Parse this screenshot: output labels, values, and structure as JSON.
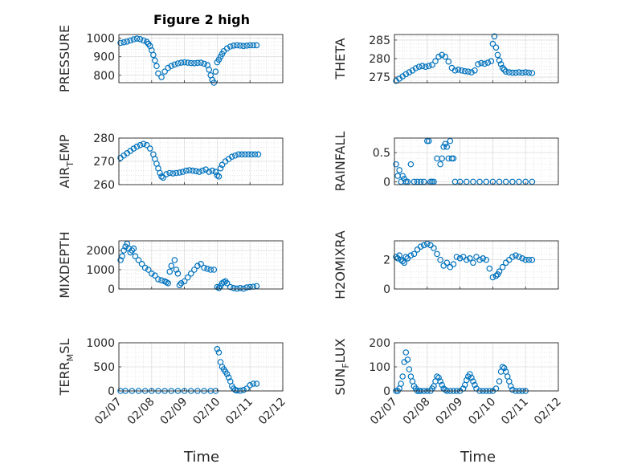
{
  "title": "Figure 2 high",
  "x_label": "Time",
  "date_ticks": [
    "02/07",
    "02/08",
    "02/09",
    "02/10",
    "02/11",
    "02/12"
  ],
  "marker_color": "#0072BD",
  "grid": true,
  "chart_data": [
    {
      "type": "scatter",
      "id": "pressure",
      "ylabel": "PRESSURE",
      "title": "Figure 2 high",
      "ylim": [
        760,
        1020
      ],
      "yticks": [
        800,
        900,
        1000
      ],
      "xlim": [
        "02/07",
        "02/12"
      ],
      "x": [
        7.05,
        7.15,
        7.25,
        7.35,
        7.45,
        7.55,
        7.65,
        7.75,
        7.85,
        7.9,
        7.95,
        8.0,
        8.05,
        8.1,
        8.15,
        8.2,
        8.3,
        8.4,
        8.5,
        8.6,
        8.7,
        8.8,
        8.9,
        9.0,
        9.1,
        9.2,
        9.3,
        9.4,
        9.5,
        9.6,
        9.7,
        9.75,
        9.8,
        9.85,
        9.9,
        9.95,
        10.0,
        10.05,
        10.1,
        10.15,
        10.2,
        10.3,
        10.4,
        10.5,
        10.6,
        10.7,
        10.8,
        10.9,
        11.0,
        11.1,
        11.2
      ],
      "y": [
        975,
        978,
        982,
        988,
        994,
        998,
        995,
        988,
        980,
        970,
        958,
        935,
        910,
        880,
        850,
        810,
        790,
        820,
        840,
        850,
        858,
        864,
        868,
        870,
        868,
        866,
        865,
        867,
        868,
        862,
        855,
        830,
        800,
        775,
        760,
        820,
        870,
        885,
        900,
        915,
        930,
        945,
        955,
        960,
        962,
        960,
        958,
        960,
        962,
        962,
        962
      ]
    },
    {
      "type": "scatter",
      "id": "theta",
      "ylabel": "THETA",
      "ylim": [
        273.5,
        286.5
      ],
      "yticks": [
        275,
        280,
        285
      ],
      "x": [
        7.05,
        7.15,
        7.25,
        7.35,
        7.45,
        7.55,
        7.65,
        7.75,
        7.85,
        7.95,
        8.05,
        8.15,
        8.25,
        8.35,
        8.45,
        8.55,
        8.65,
        8.75,
        8.85,
        8.95,
        9.05,
        9.15,
        9.25,
        9.35,
        9.45,
        9.55,
        9.65,
        9.75,
        9.85,
        9.95,
        10.0,
        10.05,
        10.1,
        10.15,
        10.2,
        10.25,
        10.3,
        10.35,
        10.4,
        10.5,
        10.6,
        10.7,
        10.8,
        10.9,
        11.0,
        11.1,
        11.2
      ],
      "y": [
        274,
        274.6,
        275.2,
        275.8,
        276.3,
        276.8,
        277.4,
        277.8,
        278,
        277.8,
        278,
        278.3,
        279.3,
        280.5,
        281,
        280.5,
        279.2,
        277.5,
        276.8,
        277,
        276.8,
        276.6,
        276.5,
        276.3,
        276.8,
        278.5,
        278.8,
        278.6,
        278.9,
        279.3,
        284,
        286,
        283,
        281,
        279.5,
        278.5,
        277.5,
        277,
        276.5,
        276.3,
        276.2,
        276.2,
        276.3,
        276.2,
        276.3,
        276.2,
        276.1
      ]
    },
    {
      "type": "scatter",
      "id": "air-temp",
      "ylabel": "AIR_TEMP",
      "ylim": [
        260,
        280
      ],
      "yticks": [
        260,
        270,
        280
      ],
      "x": [
        7.05,
        7.15,
        7.25,
        7.35,
        7.45,
        7.55,
        7.65,
        7.75,
        7.85,
        7.95,
        8.05,
        8.1,
        8.15,
        8.2,
        8.25,
        8.3,
        8.35,
        8.45,
        8.55,
        8.65,
        8.75,
        8.85,
        8.95,
        9.05,
        9.15,
        9.25,
        9.35,
        9.45,
        9.55,
        9.65,
        9.75,
        9.85,
        9.95,
        10.0,
        10.05,
        10.1,
        10.15,
        10.25,
        10.35,
        10.45,
        10.55,
        10.65,
        10.75,
        10.85,
        10.95,
        11.05,
        11.15,
        11.25
      ],
      "y": [
        271.5,
        272.5,
        273.5,
        274.5,
        275.5,
        276.3,
        277,
        277.5,
        277,
        275.5,
        273,
        271,
        269,
        267,
        265,
        263.5,
        263,
        264.5,
        265,
        264.8,
        265,
        265.2,
        265.5,
        266,
        266.2,
        266,
        265.8,
        265.5,
        266,
        266.5,
        265.5,
        266,
        265.5,
        264,
        263.5,
        267,
        268.5,
        270,
        271,
        272,
        272.5,
        273,
        273,
        273,
        273,
        273,
        273,
        273
      ]
    },
    {
      "type": "scatter",
      "id": "rainfall",
      "ylabel": "RAINFALL",
      "ylim": [
        -0.05,
        0.75
      ],
      "yticks": [
        0,
        0.5
      ],
      "x": [
        7.05,
        7.1,
        7.15,
        7.2,
        7.25,
        7.3,
        7.35,
        7.4,
        7.5,
        7.6,
        7.7,
        7.8,
        7.9,
        8.0,
        8.05,
        8.1,
        8.15,
        8.2,
        8.3,
        8.4,
        8.45,
        8.5,
        8.55,
        8.6,
        8.65,
        8.7,
        8.75,
        8.8,
        8.85,
        9.0,
        9.2,
        9.4,
        9.6,
        9.8,
        10.0,
        10.2,
        10.4,
        10.6,
        10.8,
        11.0,
        11.2
      ],
      "y": [
        0.3,
        0.1,
        0.2,
        0,
        0.1,
        0.05,
        0,
        0,
        0.3,
        0,
        0,
        0,
        0,
        0.7,
        0.7,
        0,
        0,
        0,
        0.4,
        0.3,
        0.4,
        0.6,
        0.65,
        0.6,
        0.4,
        0.7,
        0.4,
        0.4,
        0,
        0,
        0,
        0,
        0,
        0,
        0,
        0,
        0,
        0,
        0,
        0,
        0
      ]
    },
    {
      "type": "scatter",
      "id": "mixdepth",
      "ylabel": "MIXDEPTH",
      "ylim": [
        0,
        2500
      ],
      "yticks": [
        0,
        1000,
        2000
      ],
      "x": [
        7.05,
        7.1,
        7.15,
        7.2,
        7.25,
        7.3,
        7.35,
        7.4,
        7.45,
        7.5,
        7.6,
        7.7,
        7.8,
        7.9,
        8.0,
        8.1,
        8.2,
        8.3,
        8.4,
        8.45,
        8.5,
        8.55,
        8.6,
        8.7,
        8.75,
        8.8,
        8.85,
        8.9,
        9.0,
        9.1,
        9.2,
        9.3,
        9.4,
        9.5,
        9.6,
        9.7,
        9.8,
        9.9,
        10.0,
        10.05,
        10.1,
        10.15,
        10.2,
        10.25,
        10.3,
        10.4,
        10.5,
        10.6,
        10.7,
        10.8,
        10.9,
        11.0,
        11.1,
        11.2
      ],
      "y": [
        1500,
        1700,
        2000,
        2200,
        2350,
        2100,
        1900,
        2000,
        2100,
        1700,
        1500,
        1300,
        1100,
        1000,
        800,
        700,
        500,
        450,
        400,
        350,
        300,
        900,
        1200,
        1500,
        1000,
        800,
        200,
        300,
        400,
        600,
        800,
        1000,
        1200,
        1300,
        1100,
        1050,
        1000,
        1000,
        100,
        50,
        150,
        300,
        350,
        400,
        300,
        100,
        50,
        20,
        50,
        20,
        80,
        100,
        120,
        150
      ]
    },
    {
      "type": "scatter",
      "id": "h2omixra",
      "ylabel": "H2OMIXRA",
      "ylim": [
        0,
        3.3
      ],
      "yticks": [
        0,
        2
      ],
      "x": [
        7.05,
        7.1,
        7.15,
        7.2,
        7.25,
        7.3,
        7.35,
        7.4,
        7.5,
        7.6,
        7.7,
        7.8,
        7.9,
        8.0,
        8.1,
        8.2,
        8.3,
        8.4,
        8.5,
        8.6,
        8.7,
        8.8,
        8.9,
        9.0,
        9.1,
        9.2,
        9.3,
        9.4,
        9.5,
        9.6,
        9.7,
        9.8,
        9.9,
        10.0,
        10.1,
        10.15,
        10.2,
        10.3,
        10.4,
        10.5,
        10.6,
        10.7,
        10.8,
        10.9,
        11.0,
        11.1,
        11.2
      ],
      "y": [
        2.2,
        2.1,
        2.3,
        2,
        1.9,
        1.8,
        2.2,
        2.1,
        2.3,
        2.4,
        2.7,
        2.9,
        3.0,
        3.1,
        3.0,
        2.8,
        2.4,
        2.0,
        1.6,
        1.8,
        1.5,
        1.7,
        2.2,
        2.1,
        2.2,
        2.0,
        2.1,
        1.8,
        2.2,
        2.0,
        2.1,
        2.0,
        1.4,
        0.8,
        0.9,
        1.0,
        1.2,
        1.5,
        1.8,
        2.0,
        2.2,
        2.3,
        2.2,
        2.1,
        2.0,
        2.0,
        2.0
      ]
    },
    {
      "type": "scatter",
      "id": "terr-msl",
      "ylabel": "TERR_MSL",
      "ylim": [
        0,
        1000
      ],
      "yticks": [
        0,
        500,
        1000
      ],
      "x": [
        7.05,
        7.2,
        7.4,
        7.6,
        7.8,
        8.0,
        8.2,
        8.4,
        8.6,
        8.8,
        9.0,
        9.2,
        9.4,
        9.6,
        9.8,
        9.95,
        10.0,
        10.05,
        10.1,
        10.15,
        10.2,
        10.25,
        10.3,
        10.35,
        10.4,
        10.45,
        10.5,
        10.55,
        10.6,
        10.7,
        10.8,
        10.9,
        11.0,
        11.1,
        11.2
      ],
      "y": [
        0,
        0,
        0,
        0,
        0,
        0,
        0,
        0,
        0,
        0,
        0,
        0,
        0,
        0,
        0,
        0,
        870,
        800,
        600,
        500,
        450,
        400,
        350,
        280,
        200,
        100,
        50,
        20,
        10,
        5,
        20,
        50,
        120,
        150,
        150
      ]
    },
    {
      "type": "scatter",
      "id": "sun-flux",
      "ylabel": "SUN_FLUX",
      "ylim": [
        0,
        200
      ],
      "yticks": [
        0,
        100,
        200
      ],
      "x": [
        7.05,
        7.1,
        7.15,
        7.2,
        7.25,
        7.3,
        7.35,
        7.4,
        7.45,
        7.5,
        7.55,
        7.6,
        7.65,
        7.7,
        7.75,
        7.8,
        7.9,
        8.0,
        8.1,
        8.15,
        8.2,
        8.25,
        8.3,
        8.35,
        8.4,
        8.45,
        8.5,
        8.55,
        8.6,
        8.7,
        8.8,
        8.9,
        9.0,
        9.1,
        9.15,
        9.2,
        9.25,
        9.3,
        9.35,
        9.4,
        9.45,
        9.5,
        9.6,
        9.7,
        9.8,
        9.9,
        10.0,
        10.1,
        10.2,
        10.25,
        10.3,
        10.35,
        10.4,
        10.45,
        10.5,
        10.55,
        10.6,
        10.7,
        10.8,
        10.9,
        11.0
      ],
      "y": [
        0,
        0,
        10,
        30,
        60,
        120,
        160,
        130,
        90,
        60,
        40,
        20,
        10,
        0,
        0,
        0,
        0,
        0,
        0,
        10,
        20,
        40,
        60,
        55,
        40,
        25,
        10,
        5,
        0,
        0,
        0,
        0,
        0,
        10,
        25,
        45,
        60,
        70,
        55,
        40,
        25,
        10,
        0,
        0,
        0,
        0,
        0,
        10,
        40,
        80,
        100,
        95,
        80,
        60,
        40,
        20,
        5,
        0,
        0,
        0,
        0
      ]
    }
  ]
}
